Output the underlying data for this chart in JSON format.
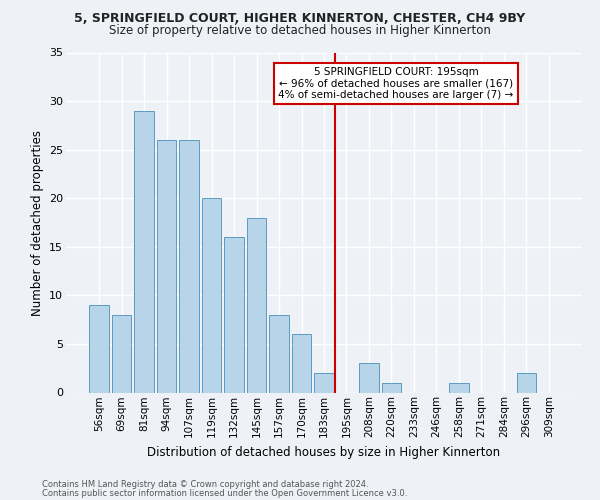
{
  "title1": "5, SPRINGFIELD COURT, HIGHER KINNERTON, CHESTER, CH4 9BY",
  "title2": "Size of property relative to detached houses in Higher Kinnerton",
  "xlabel": "Distribution of detached houses by size in Higher Kinnerton",
  "ylabel": "Number of detached properties",
  "footnote1": "Contains HM Land Registry data © Crown copyright and database right 2024.",
  "footnote2": "Contains public sector information licensed under the Open Government Licence v3.0.",
  "categories": [
    "56sqm",
    "69sqm",
    "81sqm",
    "94sqm",
    "107sqm",
    "119sqm",
    "132sqm",
    "145sqm",
    "157sqm",
    "170sqm",
    "183sqm",
    "195sqm",
    "208sqm",
    "220sqm",
    "233sqm",
    "246sqm",
    "258sqm",
    "271sqm",
    "284sqm",
    "296sqm",
    "309sqm"
  ],
  "values": [
    9,
    8,
    29,
    26,
    26,
    20,
    16,
    18,
    8,
    6,
    2,
    0,
    3,
    1,
    0,
    0,
    1,
    0,
    0,
    2,
    0
  ],
  "bar_color": "#b8d4e8",
  "bar_edge_color": "#5b9cc4",
  "vline_x_index": 11,
  "vline_color": "#cc0000",
  "annotation_title": "5 SPRINGFIELD COURT: 195sqm",
  "annotation_line2": "← 96% of detached houses are smaller (167)",
  "annotation_line3": "4% of semi-detached houses are larger (7) →",
  "annotation_box_color": "#cc0000",
  "background_color": "#eef2f7",
  "grid_color": "#ffffff",
  "ylim": [
    0,
    35
  ],
  "yticks": [
    0,
    5,
    10,
    15,
    20,
    25,
    30,
    35
  ]
}
